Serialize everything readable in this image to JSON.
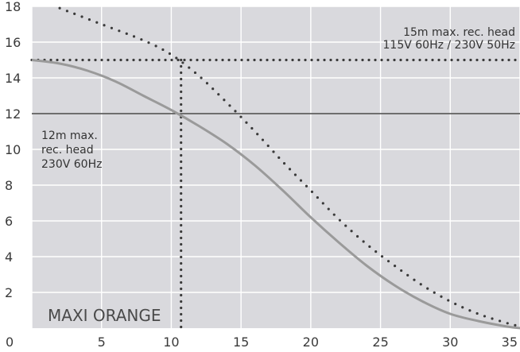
{
  "chart_data": {
    "type": "line",
    "title": "",
    "xlabel": "",
    "ylabel": "",
    "xlim": [
      0,
      35
    ],
    "ylim": [
      0,
      18
    ],
    "x_ticks": [
      "0",
      "5",
      "10",
      "15",
      "20",
      "25",
      "30",
      "35"
    ],
    "y_ticks": [
      "2",
      "4",
      "6",
      "8",
      "10",
      "12",
      "14",
      "16",
      "18"
    ],
    "grid": true,
    "series": [
      {
        "style": "dotted",
        "color": "#3a3a3a",
        "x": [
          2,
          5,
          8,
          10,
          12,
          14,
          16,
          18,
          20,
          22,
          24,
          26,
          28,
          30,
          32,
          34,
          35
        ],
        "y": [
          17.9,
          17.0,
          16.1,
          15.3,
          14.1,
          12.6,
          11.0,
          9.3,
          7.7,
          6.1,
          4.7,
          3.5,
          2.4,
          1.5,
          0.8,
          0.3,
          0.1
        ]
      },
      {
        "style": "solid",
        "color": "#9a9a9a",
        "x": [
          0,
          2,
          4,
          6,
          8,
          10,
          12,
          14,
          16,
          18,
          20,
          22,
          24,
          26,
          28,
          30,
          32,
          34,
          35
        ],
        "y": [
          15.0,
          14.8,
          14.4,
          13.8,
          13.0,
          12.2,
          11.3,
          10.3,
          9.1,
          7.7,
          6.2,
          4.8,
          3.5,
          2.4,
          1.5,
          0.8,
          0.4,
          0.1,
          0.0
        ]
      }
    ],
    "reference_lines": [
      {
        "name": "hline-15",
        "orientation": "horizontal",
        "value": 15,
        "style": "dotted",
        "color": "#3a3a3a"
      },
      {
        "name": "hline-12",
        "orientation": "horizontal",
        "value": 12,
        "style": "solid",
        "color": "#222222"
      },
      {
        "name": "vline-10.7",
        "orientation": "vertical",
        "value": 10.7,
        "from": 0,
        "to": 15,
        "style": "dotted",
        "color": "#3a3a3a"
      }
    ],
    "annotations": {
      "top_right_line1": "15m max. rec. head",
      "top_right_line2": "115V 60Hz / 230V 50Hz",
      "left_line1": "12m max.",
      "left_line2": "rec. head",
      "left_line3": "230V 60Hz",
      "product": "MAXI ORANGE"
    },
    "colors": {
      "plot_background": "#d9d9dd",
      "grid": "#ffffff"
    }
  }
}
